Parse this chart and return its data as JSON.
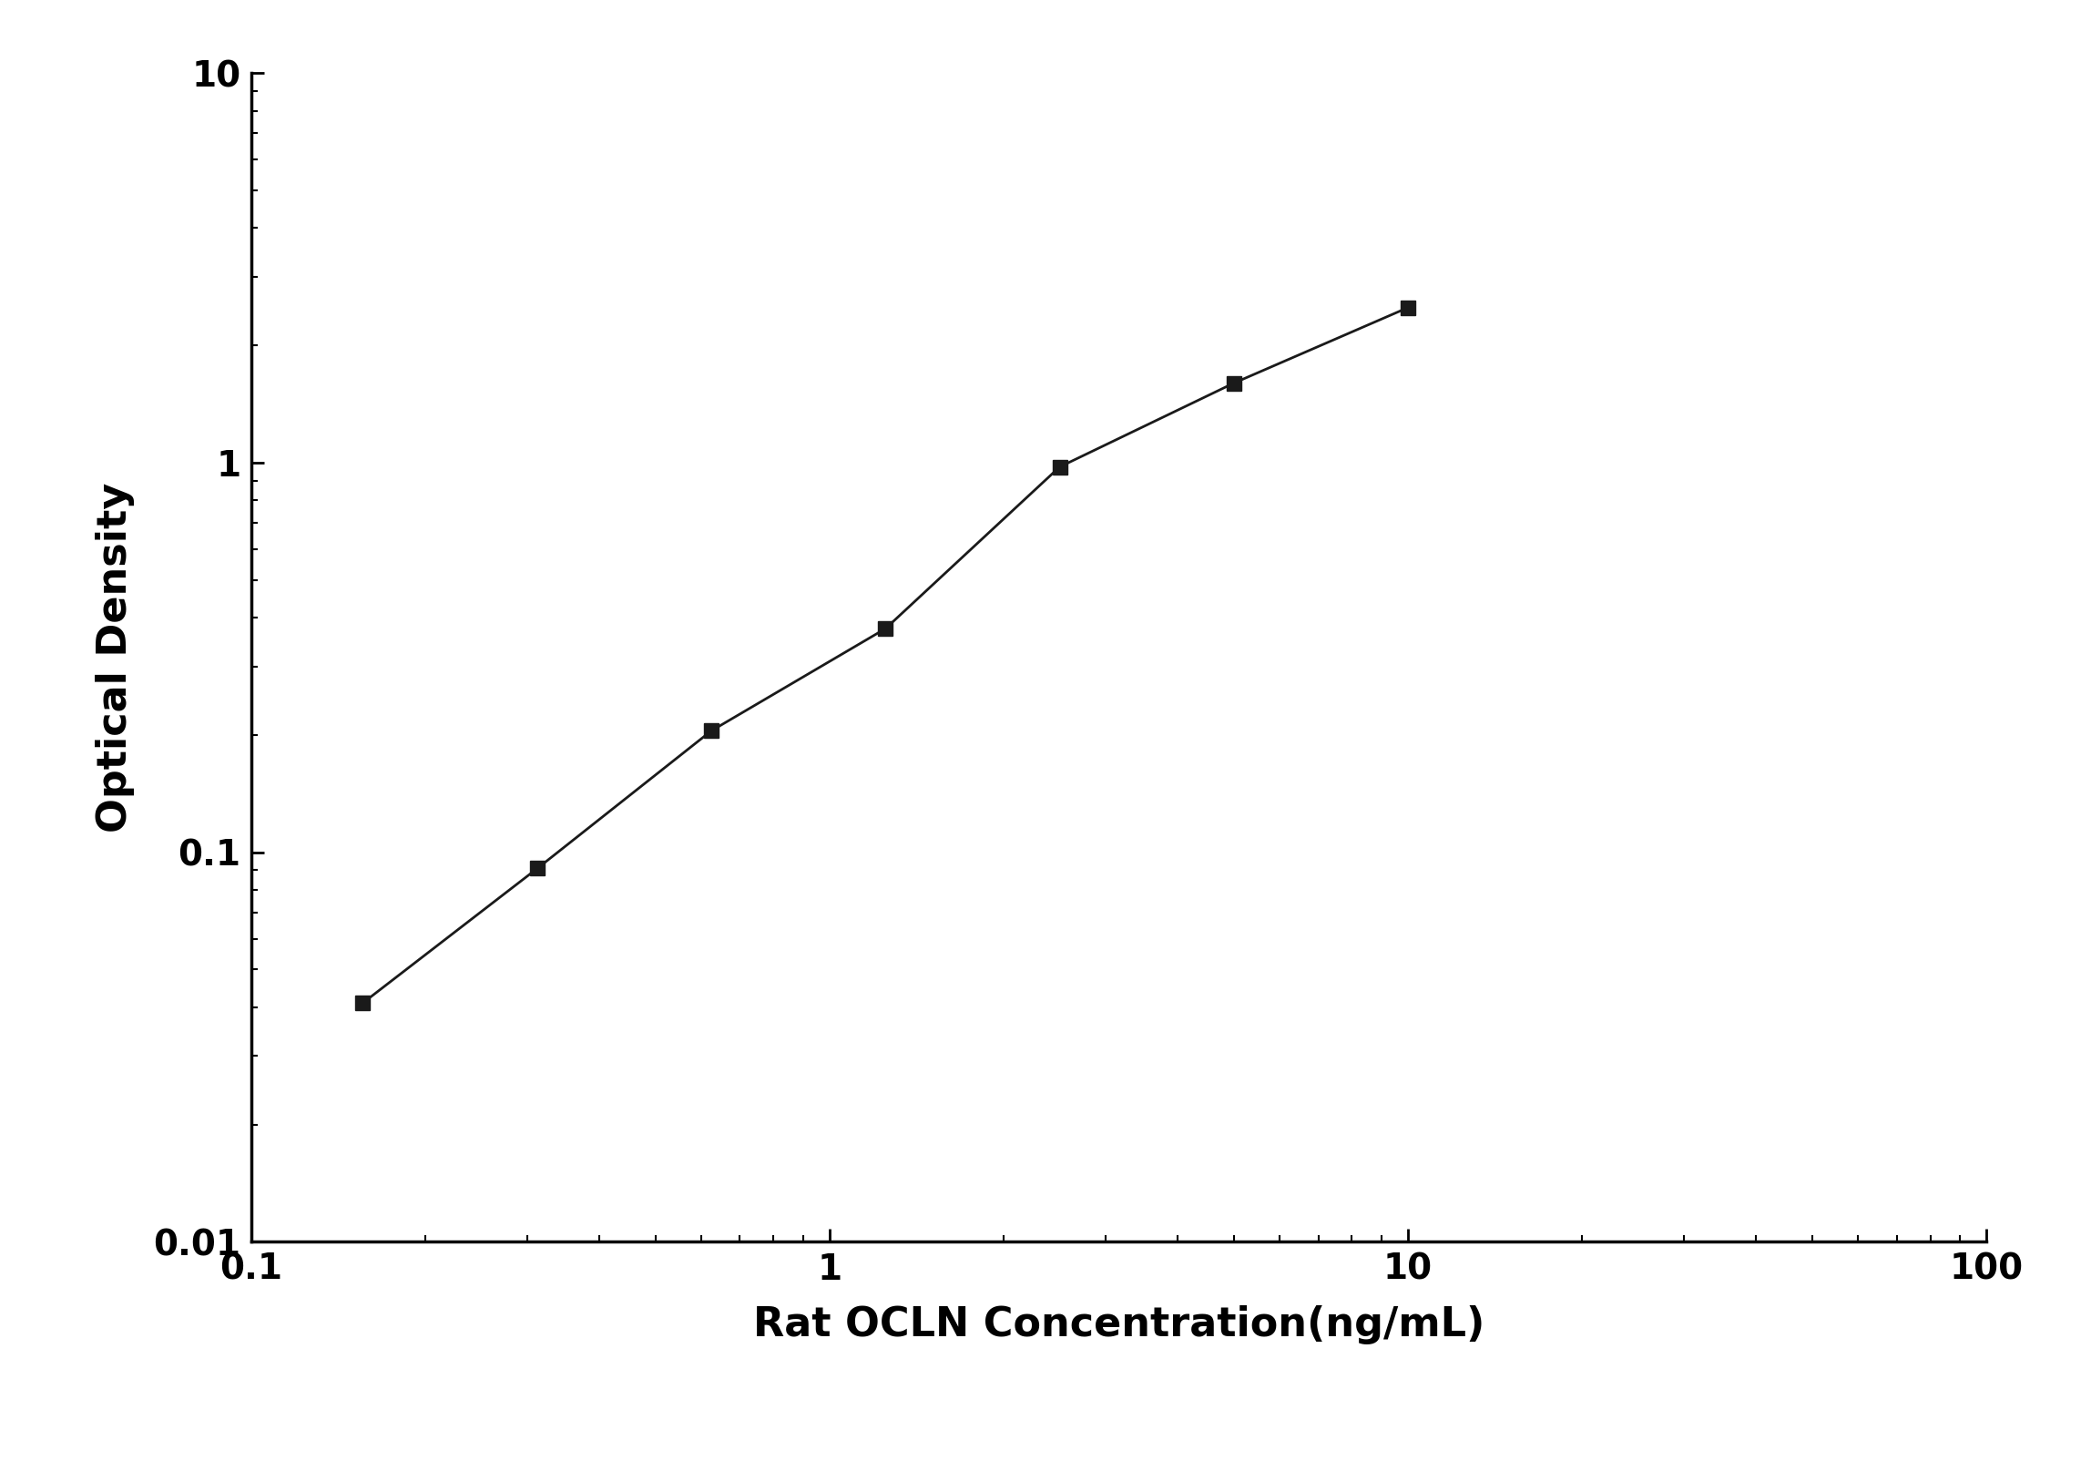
{
  "x_values": [
    0.156,
    0.313,
    0.625,
    1.25,
    2.5,
    5.0,
    10.0
  ],
  "y_values": [
    0.041,
    0.091,
    0.205,
    0.375,
    0.975,
    1.6,
    2.5
  ],
  "xlabel": "Rat OCLN Concentration(ng/mL)",
  "ylabel": "Optical Density",
  "xlim": [
    0.1,
    100
  ],
  "ylim": [
    0.01,
    10
  ],
  "xticks": [
    0.1,
    1,
    10,
    100
  ],
  "yticks": [
    0.01,
    0.1,
    1,
    10
  ],
  "xtick_labels": [
    "0.1",
    "1",
    "10",
    "100"
  ],
  "ytick_labels": [
    "0.01",
    "0.1",
    "1",
    "10"
  ],
  "marker": "s",
  "marker_color": "#1a1a1a",
  "line_color": "#1a1a1a",
  "marker_size": 12,
  "line_width": 2.0,
  "background_color": "#ffffff",
  "xlabel_fontsize": 32,
  "ylabel_fontsize": 32,
  "tick_fontsize": 28
}
